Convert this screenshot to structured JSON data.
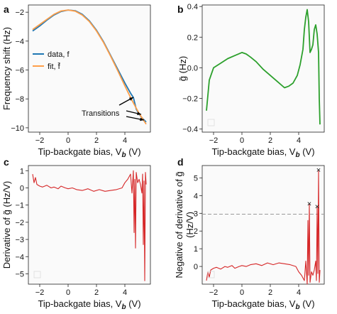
{
  "chart_data": [
    {
      "panel": "a",
      "type": "line",
      "xlabel_prefix": "Tip-backgate bias, V",
      "xlabel_sub": "b",
      "xlabel_suffix": " (V)",
      "ylabel": "Frequency shift (Hz)",
      "xlim": [
        -2.8,
        5.8
      ],
      "ylim": [
        -10.3,
        -1.5
      ],
      "xticks": [
        -2,
        0,
        2,
        4
      ],
      "yticks": [
        -2,
        -4,
        -6,
        -8,
        -10
      ],
      "legend": {
        "position": "center-left"
      },
      "annotation": "Transitions",
      "series": [
        {
          "name": "data, f",
          "color": "#1f77b4",
          "x": [
            -2.5,
            -2.0,
            -1.5,
            -1.0,
            -0.5,
            0.0,
            0.5,
            1.0,
            1.5,
            2.0,
            2.5,
            3.0,
            3.5,
            4.0,
            4.4,
            4.6,
            4.7,
            4.8,
            5.0,
            5.2,
            5.4,
            5.5
          ],
          "values": [
            -3.3,
            -2.95,
            -2.55,
            -2.2,
            -1.95,
            -1.85,
            -1.9,
            -2.15,
            -2.6,
            -3.25,
            -4.05,
            -5.0,
            -5.95,
            -6.9,
            -7.6,
            -7.9,
            -8.3,
            -8.7,
            -9.05,
            -9.3,
            -9.5,
            -9.6
          ]
        },
        {
          "name": "fit, f̄",
          "color": "#ff9f4a",
          "x": [
            -2.5,
            -2.0,
            -1.5,
            -1.0,
            -0.5,
            0.0,
            0.5,
            1.0,
            1.5,
            2.0,
            2.5,
            3.0,
            3.5,
            4.0,
            4.5,
            5.0,
            5.5
          ],
          "values": [
            -3.2,
            -2.85,
            -2.5,
            -2.15,
            -1.92,
            -1.85,
            -1.93,
            -2.2,
            -2.65,
            -3.3,
            -4.1,
            -5.05,
            -6.05,
            -7.1,
            -8.1,
            -9.0,
            -9.75
          ]
        }
      ]
    },
    {
      "panel": "b",
      "type": "line",
      "xlabel_prefix": "Tip-backgate bias, V",
      "xlabel_sub": "b",
      "xlabel_suffix": " (V)",
      "ylabel": "g̃ (Hz)",
      "xlim": [
        -2.8,
        5.8
      ],
      "ylim": [
        -0.42,
        0.41
      ],
      "xticks": [
        -2,
        0,
        2,
        4
      ],
      "yticks": [
        0.4,
        0.2,
        0.0,
        -0.2,
        -0.4
      ],
      "ytick_labels": [
        "0.4",
        "0.2",
        "0.0",
        "−0.2",
        "−0.4"
      ],
      "series": [
        {
          "color": "#2ca02c",
          "x": [
            -2.5,
            -2.3,
            -2.0,
            -1.5,
            -1.0,
            -0.5,
            0.0,
            0.3,
            0.6,
            1.0,
            1.5,
            2.0,
            2.5,
            3.0,
            3.3,
            3.6,
            3.9,
            4.1,
            4.3,
            4.4,
            4.5,
            4.6,
            4.7,
            4.75,
            4.8,
            4.9,
            5.0,
            5.1,
            5.2,
            5.3,
            5.4,
            5.45,
            5.5
          ],
          "values": [
            -0.28,
            -0.08,
            0.0,
            0.03,
            0.06,
            0.08,
            0.1,
            0.09,
            0.07,
            0.04,
            -0.01,
            -0.05,
            -0.09,
            -0.13,
            -0.12,
            -0.1,
            -0.05,
            0.02,
            0.12,
            0.25,
            0.33,
            0.38,
            0.3,
            0.2,
            0.1,
            0.12,
            0.15,
            0.25,
            0.28,
            0.22,
            0.1,
            -0.2,
            -0.37
          ]
        }
      ]
    },
    {
      "panel": "c",
      "type": "line",
      "xlabel_prefix": "Tip-backgate bias, V",
      "xlabel_sub": "b",
      "xlabel_suffix": " (V)",
      "ylabel": "Derivative of g̃ (Hz/V)",
      "xlim": [
        -2.8,
        5.8
      ],
      "ylim": [
        -5.6,
        1.3
      ],
      "xticks": [
        -2,
        0,
        2,
        4
      ],
      "yticks": [
        1,
        0,
        -1,
        -2,
        -3,
        -4,
        -5
      ],
      "ytick_labels": [
        "1",
        "0",
        "−1",
        "−2",
        "−3",
        "−4",
        "−5"
      ],
      "series": [
        {
          "color": "#d62728",
          "x": [
            -2.5,
            -2.4,
            -2.3,
            -2.2,
            -2.0,
            -1.8,
            -1.5,
            -1.2,
            -1.0,
            -0.7,
            -0.5,
            -0.2,
            0.0,
            0.3,
            0.6,
            1.0,
            1.4,
            1.8,
            2.2,
            2.6,
            3.0,
            3.4,
            3.8,
            4.0,
            4.2,
            4.4,
            4.5,
            4.6,
            4.65,
            4.7,
            4.75,
            4.8,
            4.9,
            5.0,
            5.1,
            5.2,
            5.25,
            5.3,
            5.35,
            5.4,
            5.45,
            5.5
          ],
          "values": [
            0.8,
            0.3,
            0.6,
            0.2,
            0.1,
            0.05,
            0.15,
            0.0,
            0.05,
            -0.05,
            0.1,
            0.0,
            -0.05,
            0.0,
            -0.1,
            -0.15,
            -0.05,
            -0.2,
            -0.1,
            -0.2,
            -0.15,
            -0.1,
            0.0,
            0.3,
            0.5,
            0.8,
            -0.3,
            1.0,
            -2.6,
            0.5,
            -3.5,
            0.9,
            0.3,
            0.5,
            0.2,
            -0.3,
            0.8,
            -3.3,
            0.4,
            -5.4,
            0.9,
            0.2
          ]
        }
      ]
    },
    {
      "panel": "d",
      "type": "line",
      "xlabel_prefix": "Tip-backgate bias, V",
      "xlabel_sub": "b",
      "xlabel_suffix": " (V)",
      "ylabel_line1": "Negative of derivative of g̃",
      "ylabel_line2": "(Hz/V)",
      "xlim": [
        -2.8,
        5.8
      ],
      "ylim": [
        -1.0,
        5.7
      ],
      "xticks": [
        -2,
        0,
        2,
        4
      ],
      "yticks": [
        0,
        1,
        2,
        3,
        4,
        5
      ],
      "threshold": 2.95,
      "series": [
        {
          "color": "#d62728",
          "x": [
            -2.5,
            -2.4,
            -2.3,
            -2.2,
            -2.0,
            -1.8,
            -1.5,
            -1.2,
            -1.0,
            -0.7,
            -0.5,
            -0.2,
            0.0,
            0.3,
            0.6,
            1.0,
            1.4,
            1.8,
            2.2,
            2.6,
            3.0,
            3.4,
            3.8,
            4.0,
            4.2,
            4.4,
            4.5,
            4.6,
            4.65,
            4.7,
            4.75,
            4.8,
            4.9,
            5.0,
            5.1,
            5.2,
            5.25,
            5.3,
            5.35,
            5.4,
            5.45,
            5.5
          ],
          "values": [
            -0.8,
            -0.3,
            -0.6,
            -0.2,
            -0.1,
            -0.05,
            -0.15,
            0.0,
            -0.05,
            0.05,
            -0.1,
            0.0,
            0.05,
            0.0,
            0.1,
            0.15,
            0.05,
            0.2,
            0.1,
            0.2,
            0.15,
            0.1,
            0.0,
            -0.3,
            -0.5,
            -0.8,
            0.3,
            -1.0,
            2.6,
            -0.5,
            3.5,
            -0.9,
            -0.3,
            -0.5,
            -0.2,
            0.3,
            -0.8,
            3.3,
            -0.4,
            5.4,
            -0.9,
            -0.2
          ]
        }
      ],
      "markers": {
        "symbol": "×",
        "x": [
          4.75,
          5.3,
          5.4
        ],
        "values": [
          3.55,
          3.4,
          5.45
        ]
      }
    }
  ]
}
